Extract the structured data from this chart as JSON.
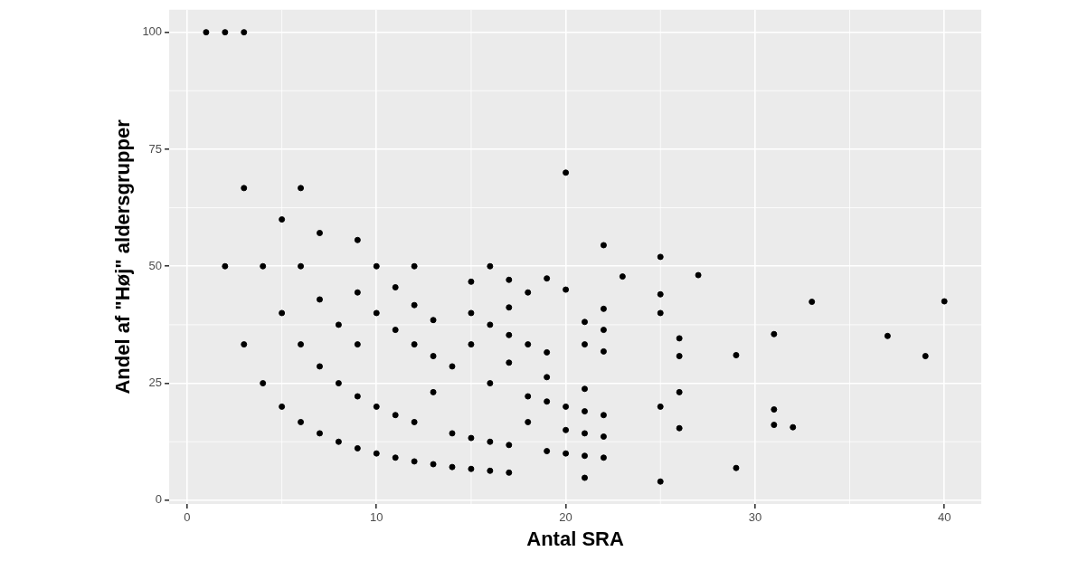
{
  "chart_data": {
    "type": "scatter",
    "xlabel": "Antal SRA",
    "ylabel": "Andel af \"Høj\" aldersgrupper",
    "x": [
      1,
      2,
      2,
      3,
      3,
      3,
      4,
      4,
      5,
      5,
      5,
      6,
      6,
      6,
      6,
      7,
      7,
      7,
      7,
      8,
      8,
      8,
      9,
      9,
      9,
      9,
      9,
      10,
      10,
      10,
      10,
      11,
      11,
      11,
      11,
      12,
      12,
      12,
      12,
      12,
      13,
      13,
      13,
      13,
      14,
      14,
      14,
      15,
      15,
      15,
      15,
      15,
      16,
      16,
      16,
      16,
      16,
      17,
      17,
      17,
      17,
      17,
      17,
      18,
      18,
      18,
      18,
      19,
      19,
      19,
      19,
      19,
      20,
      20,
      20,
      20,
      20,
      21,
      21,
      21,
      21,
      21,
      21,
      21,
      22,
      22,
      22,
      22,
      22,
      22,
      22,
      23,
      25,
      25,
      25,
      25,
      25,
      26,
      26,
      26,
      26,
      27,
      29,
      29,
      31,
      31,
      31,
      32,
      33,
      37,
      39,
      40
    ],
    "values": [
      100,
      100,
      50,
      100,
      66.7,
      33.3,
      50,
      25,
      60,
      40,
      20,
      66.7,
      50,
      33.3,
      16.7,
      57.1,
      42.9,
      28.6,
      14.3,
      37.5,
      25,
      12.5,
      55.6,
      44.4,
      33.3,
      22.2,
      11.1,
      50,
      40,
      20,
      10,
      45.5,
      36.4,
      18.2,
      9.1,
      50,
      41.7,
      33.3,
      16.7,
      8.3,
      38.5,
      30.8,
      23.1,
      7.7,
      28.6,
      14.3,
      7.1,
      46.7,
      40,
      33.3,
      13.3,
      6.7,
      50,
      37.5,
      25,
      12.5,
      6.3,
      47.1,
      41.2,
      35.3,
      29.4,
      11.8,
      5.9,
      44.4,
      33.3,
      22.2,
      16.7,
      47.4,
      31.6,
      26.3,
      21.1,
      10.5,
      70,
      45,
      20,
      15,
      10,
      38.1,
      33.3,
      23.8,
      19,
      14.3,
      9.5,
      4.8,
      54.5,
      40.9,
      36.4,
      31.8,
      18.2,
      13.6,
      9.1,
      47.8,
      52,
      44,
      40,
      20,
      4,
      34.6,
      30.8,
      23.1,
      15.4,
      48.1,
      31,
      6.9,
      35.5,
      19.4,
      16.1,
      15.6,
      42.4,
      35.1,
      30.8,
      42.5
    ],
    "color": "#000000",
    "marker": "circle",
    "xlim": [
      -0.95,
      41.95
    ],
    "xticks": [
      0,
      10,
      20,
      30,
      40
    ],
    "ylim": [
      -0.8,
      104.8
    ],
    "yticks": [
      0,
      25,
      50,
      75,
      100
    ],
    "grid": true
  }
}
